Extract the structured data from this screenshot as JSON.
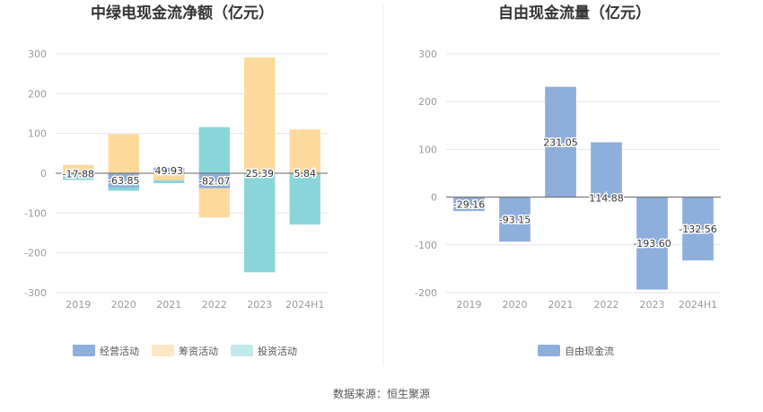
{
  "colors": {
    "operating": "#8eaedc",
    "financing": "#fdd99c",
    "investing": "#88d6d9",
    "free_cash_flow": "#8eaedc",
    "grid": "#e6e6e6",
    "axis": "#666666"
  },
  "source_text": "数据来源：恒生聚源",
  "chart_data": [
    {
      "type": "bar",
      "stacked": true,
      "title": "中绿电现金流净额（亿元）",
      "categories": [
        "2019",
        "2020",
        "2021",
        "2022",
        "2023",
        "2024H1"
      ],
      "ylim": [
        -300,
        300
      ],
      "yticks": [
        300,
        200,
        100,
        0,
        -100,
        -200,
        -300
      ],
      "grid": true,
      "legend_position": "bottom",
      "series": [
        {
          "name": "经营活动",
          "color_key": "operating",
          "values": [
            -2,
            -36,
            14,
            -38,
            -1,
            -1
          ]
        },
        {
          "name": "筹资活动",
          "color_key": "financing",
          "values": [
            21,
            98,
            -18,
            -73,
            291,
            110
          ]
        },
        {
          "name": "投资活动",
          "color_key": "investing",
          "values": [
            -15,
            -8,
            -7,
            116,
            -248,
            -128
          ]
        }
      ],
      "data_labels": [
        "-17.88",
        "-63.85",
        "49.93",
        "-82.07",
        "25.39",
        "5.84"
      ]
    },
    {
      "type": "bar",
      "title": "自由现金流量（亿元）",
      "categories": [
        "2019",
        "2020",
        "2021",
        "2022",
        "2023",
        "2024H1"
      ],
      "ylim": [
        -200,
        300
      ],
      "yticks": [
        300,
        200,
        100,
        0,
        -100,
        -200
      ],
      "grid": true,
      "legend_position": "bottom",
      "series": [
        {
          "name": "自由现金流",
          "color_key": "free_cash_flow",
          "values": [
            -29.16,
            -93.15,
            231.05,
            114.88,
            -193.6,
            -132.56
          ]
        }
      ],
      "data_labels": [
        "-29.16",
        "-93.15",
        "231.05",
        "114.88",
        "-193.60",
        "-132.56"
      ]
    }
  ]
}
